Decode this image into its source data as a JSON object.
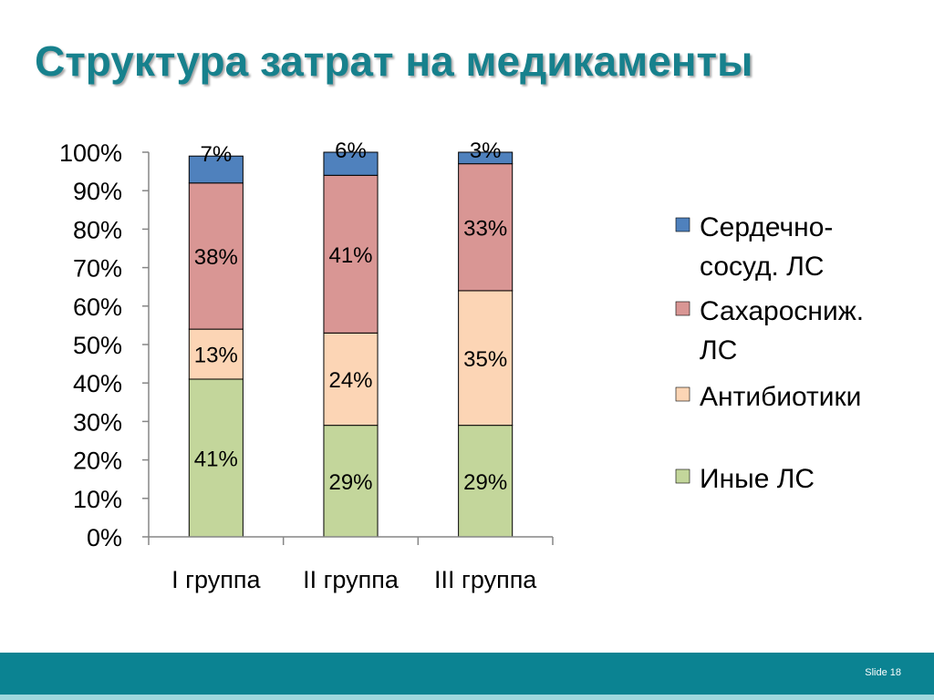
{
  "slide": {
    "title": "Структура затрат на медикаменты",
    "number_label": "Slide 18"
  },
  "chart_data": {
    "type": "bar",
    "stacked": true,
    "categories": [
      "I группа",
      "II группа",
      "III группа"
    ],
    "series": [
      {
        "name": "Иные ЛС",
        "values": [
          41,
          29,
          29
        ],
        "labels": [
          "41%",
          "29%",
          "29%"
        ],
        "color": "#c3d69b"
      },
      {
        "name": "Антибиотики",
        "values": [
          13,
          24,
          35
        ],
        "labels": [
          "13%",
          "24%",
          "35%"
        ],
        "color": "#fcd5b5"
      },
      {
        "name": "Сахаросниж. ЛС",
        "values": [
          38,
          41,
          33
        ],
        "labels": [
          "38%",
          "41%",
          "33%"
        ],
        "color": "#d99694"
      },
      {
        "name": "Сердечно-сосуд. ЛС",
        "values": [
          7,
          6,
          3
        ],
        "labels": [
          "7%",
          "6%",
          "3%"
        ],
        "color": "#4f81bd"
      }
    ],
    "y_ticks": [
      "0%",
      "10%",
      "20%",
      "30%",
      "40%",
      "50%",
      "60%",
      "70%",
      "80%",
      "90%",
      "100%"
    ],
    "ylim": [
      0,
      100
    ],
    "legend": {
      "position": "right",
      "entries": [
        {
          "lines": [
            "Сердечно-",
            "сосуд. ЛС"
          ],
          "color": "#4f81bd"
        },
        {
          "lines": [
            "Сахаросниж.",
            "ЛС"
          ],
          "color": "#d99694"
        },
        {
          "lines": [
            "Антибиотики"
          ],
          "color": "#fcd5b5"
        },
        {
          "lines": [
            "Иные ЛС"
          ],
          "color": "#c3d69b"
        }
      ]
    }
  }
}
